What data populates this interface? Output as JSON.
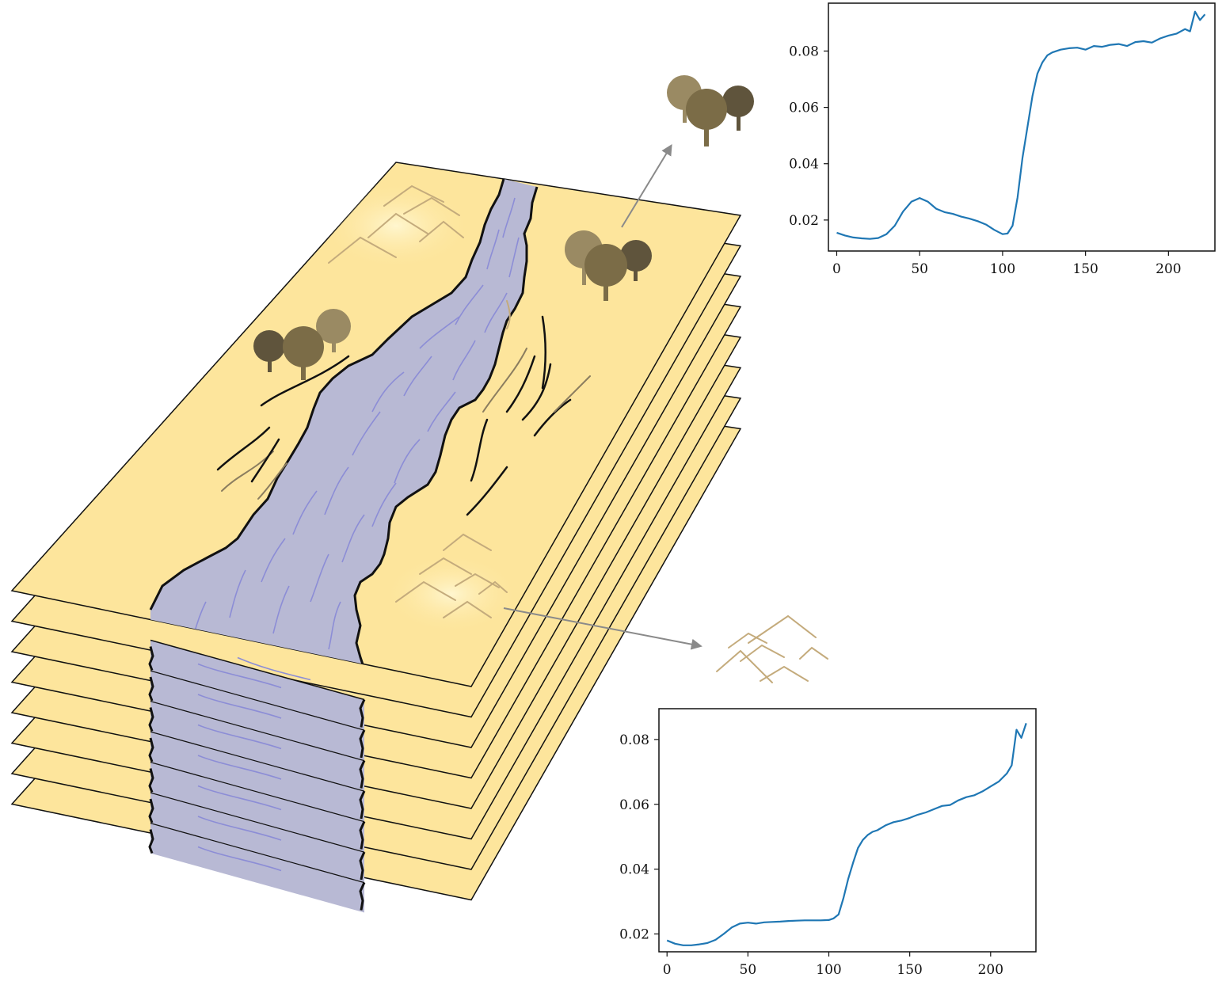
{
  "colors": {
    "land": "#fde59c",
    "river": "#b8b9d4",
    "river_lines": "#8c8dd6",
    "outline": "#111111",
    "tree_dark": "#5f543c",
    "tree_mid": "#7b6c47",
    "tree_light": "#9a8a63",
    "dune": "#c4ab7c",
    "arrow": "#8a8a8a",
    "series": "#1f77b4"
  },
  "icons": [
    "trees-icon",
    "dunes-icon",
    "arrow-icon"
  ],
  "layers": {
    "count": 8
  },
  "chart_data": [
    {
      "type": "line",
      "grid": false,
      "xlim": [
        -5,
        228
      ],
      "ylim": [
        0.009,
        0.097
      ],
      "xticks": [
        0,
        50,
        100,
        150,
        200
      ],
      "xtick_labels": [
        "0",
        "50",
        "100",
        "150",
        "200"
      ],
      "yticks": [
        0.02,
        0.04,
        0.06,
        0.08
      ],
      "ytick_labels": [
        "0.02",
        "0.04",
        "0.06",
        "0.08"
      ],
      "series": [
        {
          "x": [
            0,
            5,
            10,
            15,
            20,
            25,
            30,
            35,
            40,
            45,
            50,
            55,
            60,
            65,
            70,
            75,
            80,
            85,
            90,
            95,
            100,
            103,
            106,
            109,
            112,
            115,
            118,
            121,
            124,
            127,
            130,
            135,
            140,
            145,
            150,
            155,
            160,
            165,
            170,
            175,
            180,
            185,
            190,
            195,
            200,
            205,
            210,
            213,
            216,
            219,
            222
          ],
          "values": [
            0.0155,
            0.0145,
            0.0138,
            0.0135,
            0.0133,
            0.0136,
            0.015,
            0.018,
            0.023,
            0.0265,
            0.0278,
            0.0265,
            0.024,
            0.0228,
            0.0222,
            0.0212,
            0.0205,
            0.0196,
            0.0184,
            0.0165,
            0.015,
            0.0152,
            0.018,
            0.028,
            0.042,
            0.053,
            0.064,
            0.072,
            0.076,
            0.0785,
            0.0795,
            0.0805,
            0.081,
            0.0812,
            0.0805,
            0.0818,
            0.0815,
            0.0822,
            0.0825,
            0.0818,
            0.0832,
            0.0835,
            0.083,
            0.0845,
            0.0855,
            0.0862,
            0.0878,
            0.087,
            0.094,
            0.091,
            0.093
          ]
        }
      ]
    },
    {
      "type": "line",
      "grid": false,
      "xlim": [
        -5,
        228
      ],
      "ylim": [
        0.0145,
        0.0895
      ],
      "xticks": [
        0,
        50,
        100,
        150,
        200
      ],
      "xtick_labels": [
        "0",
        "50",
        "100",
        "150",
        "200"
      ],
      "yticks": [
        0.02,
        0.04,
        0.06,
        0.08
      ],
      "ytick_labels": [
        "0.02",
        "0.04",
        "0.06",
        "0.08"
      ],
      "series": [
        {
          "x": [
            0,
            5,
            10,
            15,
            20,
            25,
            30,
            35,
            40,
            45,
            50,
            55,
            60,
            65,
            70,
            75,
            80,
            85,
            90,
            95,
            100,
            103,
            106,
            109,
            112,
            115,
            118,
            121,
            124,
            127,
            130,
            135,
            140,
            145,
            150,
            155,
            160,
            165,
            170,
            175,
            180,
            185,
            190,
            195,
            200,
            205,
            210,
            213,
            216,
            219,
            222
          ],
          "values": [
            0.018,
            0.017,
            0.0165,
            0.0165,
            0.0168,
            0.0172,
            0.0182,
            0.02,
            0.022,
            0.0232,
            0.0235,
            0.0232,
            0.0236,
            0.0237,
            0.0238,
            0.024,
            0.0241,
            0.0242,
            0.0242,
            0.0242,
            0.0243,
            0.0248,
            0.026,
            0.031,
            0.037,
            0.042,
            0.0465,
            0.049,
            0.0505,
            0.0515,
            0.052,
            0.0535,
            0.0545,
            0.055,
            0.0558,
            0.0568,
            0.0575,
            0.0585,
            0.0595,
            0.0598,
            0.0612,
            0.0622,
            0.0628,
            0.064,
            0.0655,
            0.067,
            0.0695,
            0.072,
            0.083,
            0.0805,
            0.085
          ]
        }
      ]
    }
  ]
}
